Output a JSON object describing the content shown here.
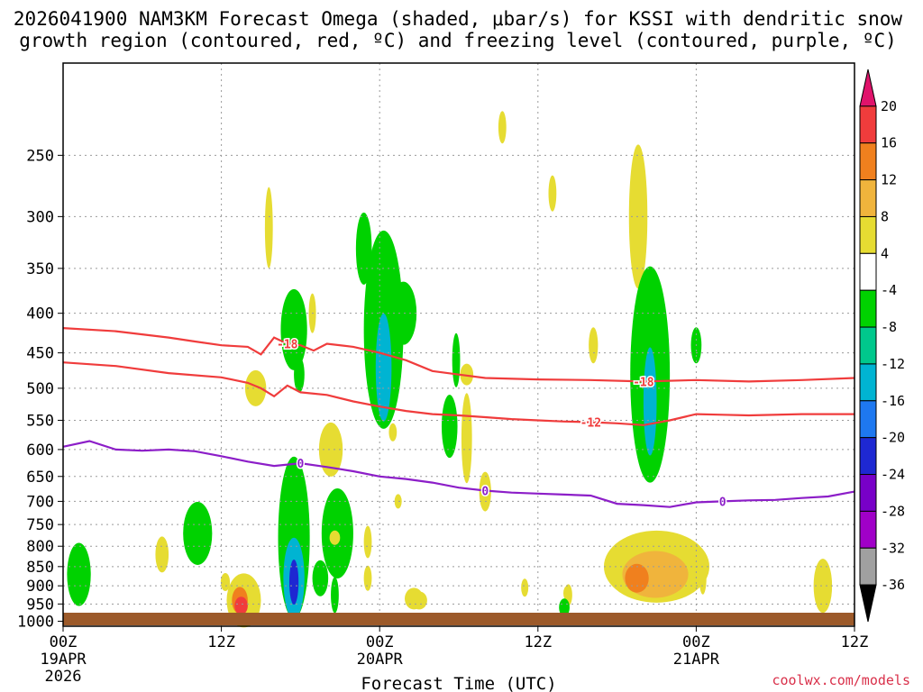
{
  "chart_data": {
    "type": "heatmap",
    "title_line1": "2026041900 NAM3KM Forecast Omega (shaded, μbar/s) for KSSI with dendritic snow",
    "title_line2": "growth region (contoured, red, ºC) and freezing level (contoured, purple, ºC)",
    "xlabel": "Forecast Time (UTC)",
    "ylabel": "",
    "credit": "coolwx.com/models",
    "x_range_hours": [
      0,
      60
    ],
    "y_range_hpa": [
      1015,
      190
    ],
    "x_ticks": [
      {
        "hour": 0,
        "label": "00Z",
        "date": "19APR",
        "year": "2026"
      },
      {
        "hour": 12,
        "label": "12Z",
        "date": "",
        "year": ""
      },
      {
        "hour": 24,
        "label": "00Z",
        "date": "20APR",
        "year": ""
      },
      {
        "hour": 36,
        "label": "12Z",
        "date": "",
        "year": ""
      },
      {
        "hour": 48,
        "label": "00Z",
        "date": "21APR",
        "year": ""
      },
      {
        "hour": 60,
        "label": "12Z",
        "date": "",
        "year": ""
      }
    ],
    "y_ticks": [
      250,
      300,
      350,
      400,
      450,
      500,
      550,
      600,
      650,
      700,
      750,
      800,
      850,
      900,
      950,
      1000
    ],
    "colorbar": {
      "labels": [
        "20",
        "16",
        "12",
        "8",
        "4",
        "-4",
        "-8",
        "-12",
        "-16",
        "-20",
        "-24",
        "-28",
        "-32",
        "-36"
      ],
      "colors": [
        "#e0136b",
        "#f03c3c",
        "#f0801e",
        "#f0b43c",
        "#e6dc32",
        "#ffffff",
        "#00d200",
        "#00c88c",
        "#00b4d2",
        "#1e78f0",
        "#1e28d2",
        "#7800c8",
        "#a000c8",
        "#a0a0a0",
        "#000000"
      ]
    },
    "contours": [
      {
        "name": "-18 °C (dendritic top)",
        "color": "#f03c3c",
        "label": "-18",
        "x": [
          0,
          4,
          8,
          10,
          12,
          14,
          15,
          16,
          17,
          18,
          19,
          20,
          22,
          24,
          26,
          28,
          30,
          32,
          36,
          40,
          44,
          48,
          52,
          56,
          60
        ],
        "y": [
          418,
          422,
          430,
          435,
          440,
          442,
          452,
          430,
          438,
          440,
          447,
          438,
          442,
          450,
          460,
          475,
          480,
          485,
          487,
          488,
          490,
          488,
          490,
          488,
          485
        ]
      },
      {
        "name": "-12 °C (dendritic bottom)",
        "color": "#f03c3c",
        "label": "-12",
        "x": [
          0,
          4,
          8,
          12,
          14,
          15,
          16,
          17,
          18,
          20,
          22,
          24,
          26,
          28,
          30,
          32,
          34,
          36,
          38,
          40,
          42,
          44,
          46,
          48,
          50,
          52,
          56,
          60
        ],
        "y": [
          463,
          468,
          478,
          484,
          492,
          500,
          512,
          496,
          506,
          510,
          520,
          528,
          535,
          540,
          542,
          545,
          548,
          550,
          552,
          553,
          555,
          558,
          550,
          540,
          541,
          542,
          540,
          540
        ]
      },
      {
        "name": "0 °C (freezing level)",
        "color": "#8c1ec8",
        "label": "0",
        "x": [
          0,
          2,
          4,
          6,
          8,
          10,
          12,
          14,
          16,
          18,
          20,
          22,
          24,
          26,
          28,
          30,
          32,
          34,
          36,
          38,
          40,
          42,
          44,
          46,
          48,
          50,
          52,
          54,
          56,
          58,
          60
        ],
        "y": [
          595,
          585,
          600,
          602,
          600,
          603,
          612,
          622,
          630,
          625,
          632,
          640,
          650,
          655,
          662,
          672,
          678,
          682,
          684,
          686,
          688,
          705,
          708,
          712,
          702,
          700,
          698,
          697,
          693,
          690,
          680
        ]
      }
    ],
    "omega_features": [
      {
        "name": "upper weak ascent",
        "sign": "negative",
        "value_range": [
          -8,
          -4
        ],
        "x_hours": [
          16.5,
          18.5
        ],
        "p_range_hpa": [
          370,
          470
        ]
      },
      {
        "name": "upper-level jet-core ascent",
        "sign": "negative",
        "value_range": [
          -16,
          -4
        ],
        "x_hours": [
          22.5,
          25.5
        ],
        "p_range_hpa": [
          300,
          560
        ]
      },
      {
        "name": "low-level ascent max",
        "sign": "negative",
        "value_range": [
          -24,
          -4
        ],
        "x_hours": [
          16.0,
          18.0
        ],
        "p_range_hpa": [
          610,
          1000
        ]
      },
      {
        "name": "deep ascent day 2",
        "sign": "negative",
        "value_range": [
          -16,
          -4
        ],
        "x_hours": [
          43.5,
          46.5
        ],
        "p_range_hpa": [
          350,
          650
        ]
      },
      {
        "name": "descent low levels day 2",
        "sign": "positive",
        "value_range": [
          4,
          16
        ],
        "x_hours": [
          41.0,
          49.0
        ],
        "p_range_hpa": [
          760,
          960
        ]
      },
      {
        "name": "descent near surface day 1",
        "sign": "positive",
        "value_range": [
          4,
          16
        ],
        "x_hours": [
          12.5,
          14.5
        ],
        "p_range_hpa": [
          870,
          985
        ]
      }
    ]
  }
}
